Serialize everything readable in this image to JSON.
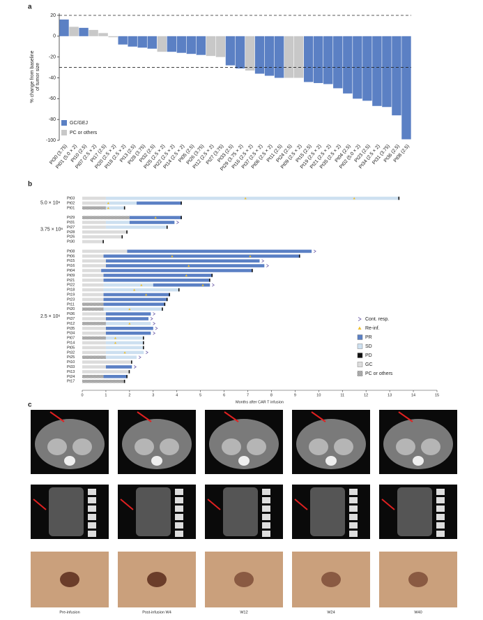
{
  "panel_labels": [
    "a",
    "b",
    "c"
  ],
  "chart_data": [
    {
      "type": "bar",
      "ylabel": [
        "% change from baseline",
        "of tumor size"
      ],
      "categories": [
        "Pt30 (3.75)",
        "Pt01 (5.0 × 2)",
        "Pt10 (2.5)",
        "Pt07 (2.5 × 2)",
        "Pt17 (2.5)",
        "Pt20 (2.5 × 2)",
        "Pt18 (2.5 × 2)",
        "Pt13 (2.5)",
        "Pt28 (3.75)",
        "Pt32 (2.5)",
        "Pt25 (2.5 × 2)",
        "Pt22 (2.5 × 2)",
        "Pt14 (2.5 × 2)",
        "Pt05 (2.5)",
        "Pt26 (3.75)",
        "Pt12 (2.5 × 2)",
        "Pt27 (3.75)",
        "Pt33 (2.5)",
        "Pt29 (3.75 × 2)",
        "Pt16 (2.5 × 2)",
        "Pt37 (2.5 × 2)",
        "Pt06 (2.5 × 2)",
        "Pt11 (2.5)",
        "Pt24 (2.5)",
        "Pt09 (2.5 × 2)",
        "Pt15 (2.5)",
        "Pt19 (2.5 × 2)",
        "Pt21 (2.5 × 2)",
        "Pt35 (2.5 × 2)",
        "Pt04 (2.5)",
        "Pt02 (5.0 × 2)",
        "Pt23 (2.5)",
        "Pt34 (2.5 × 2)",
        "Pt31 (3.75)",
        "Pt36 (2.5)",
        "Pt08 (2.5)"
      ],
      "series": [
        {
          "name": "GC/GEJ",
          "color": "#5b80c4",
          "values": [
            16,
            null,
            8,
            null,
            null,
            null,
            -8,
            -10,
            -11,
            -12,
            null,
            -15,
            -16,
            -17,
            -18,
            null,
            null,
            -28,
            -31,
            null,
            -36,
            -38,
            -40,
            null,
            null,
            -44,
            -45,
            -46,
            -50,
            -55,
            -60,
            -62,
            -67,
            -68,
            -76,
            -99
          ]
        },
        {
          "name": "PC or others",
          "color": "#c8c8c8",
          "values": [
            null,
            9,
            null,
            6,
            3,
            -1,
            null,
            null,
            null,
            null,
            -15,
            null,
            null,
            null,
            null,
            -19,
            -20,
            null,
            null,
            -33,
            null,
            null,
            null,
            -40,
            -40,
            null,
            null,
            null,
            null,
            null,
            null,
            null,
            null,
            null,
            null,
            null
          ]
        }
      ],
      "ylim": [
        -100,
        22
      ],
      "yticks": [
        20,
        0,
        -20,
        -40,
        -60,
        -80,
        -100
      ],
      "reference_lines": [
        20,
        -30
      ],
      "legend": "lower left"
    },
    {
      "type": "swimmer",
      "xlabel": "Months after CAR T infusion",
      "xlim": [
        0,
        15
      ],
      "xticks": [
        0,
        1,
        2,
        3,
        4,
        5,
        6,
        7,
        8,
        9,
        10,
        11,
        12,
        13,
        14,
        15
      ],
      "legend_items": [
        {
          "name": "Cont. resp.",
          "symbol": "chevron",
          "color": "#6b5ca8"
        },
        {
          "name": "Re-inf.",
          "symbol": "triangle",
          "color": "#f0c030"
        },
        {
          "name": "PR",
          "symbol": "box",
          "color": "#5b80c4"
        },
        {
          "name": "SD",
          "symbol": "box",
          "color": "#cde0f0"
        },
        {
          "name": "PD",
          "symbol": "box",
          "color": "#111111"
        },
        {
          "name": "GC",
          "symbol": "box",
          "color": "#dcdcdc"
        },
        {
          "name": "PC or others",
          "symbol": "hatch",
          "color": "#dcdcdc"
        }
      ],
      "groups": [
        {
          "label": "5.0 × 10⁶",
          "rows": [
            {
              "name": "Pt03",
              "segments": [
                {
                  "state": "GC",
                  "length": 1
                },
                {
                  "state": "SD",
                  "length": 12.4
                }
              ],
              "end": "PD",
              "reinfusions": [
                6.9,
                11.5
              ]
            },
            {
              "name": "Pt02",
              "segments": [
                {
                  "state": "GC",
                  "length": 1
                },
                {
                  "state": "SD",
                  "length": 1.3
                },
                {
                  "state": "PR",
                  "length": 1.9
                }
              ],
              "end": "PD",
              "reinfusions": [
                1.1
              ]
            },
            {
              "name": "Pt01",
              "segments": [
                {
                  "state": "PC or others",
                  "length": 1
                },
                {
                  "state": "SD",
                  "length": 0.8
                }
              ],
              "end": "PD",
              "reinfusions": [
                1.1
              ]
            }
          ]
        },
        {
          "label": "3.75 × 10⁶",
          "rows": [
            {
              "name": "Pt29",
              "segments": [
                {
                  "state": "PC or others",
                  "length": 2
                },
                {
                  "state": "PR",
                  "length": 2.2
                }
              ],
              "end": "PD",
              "reinfusions": [
                3.1
              ]
            },
            {
              "name": "Pt31",
              "segments": [
                {
                  "state": "GC",
                  "length": 1
                },
                {
                  "state": "SD",
                  "length": 1
                },
                {
                  "state": "PR",
                  "length": 1.9
                }
              ],
              "end": "Cont. resp.",
              "reinfusions": []
            },
            {
              "name": "Pt27",
              "segments": [
                {
                  "state": "GC",
                  "length": 1
                },
                {
                  "state": "SD",
                  "length": 2.6
                }
              ],
              "end": "PD",
              "reinfusions": []
            },
            {
              "name": "Pt28",
              "segments": [
                {
                  "state": "GC",
                  "length": 1.9
                }
              ],
              "end": "PD",
              "reinfusions": []
            },
            {
              "name": "Pt26",
              "segments": [
                {
                  "state": "GC",
                  "length": 1.7
                }
              ],
              "end": "PD",
              "reinfusions": []
            },
            {
              "name": "Pt30",
              "segments": [
                {
                  "state": "GC",
                  "length": 0.9
                }
              ],
              "end": "PD",
              "reinfusions": []
            }
          ]
        },
        {
          "label": "2.5 × 10⁶",
          "rows": [
            {
              "name": "Pt08",
              "segments": [
                {
                  "state": "GC",
                  "length": 1.9
                },
                {
                  "state": "PR",
                  "length": 7.8
                }
              ],
              "end": "Cont. resp.",
              "reinfusions": []
            },
            {
              "name": "Pt06",
              "segments": [
                {
                  "state": "GC",
                  "length": 0.9
                },
                {
                  "state": "PR",
                  "length": 8.3
                }
              ],
              "end": "PD",
              "reinfusions": [
                3.8,
                7.1
              ]
            },
            {
              "name": "Pt15",
              "segments": [
                {
                  "state": "GC",
                  "length": 1
                },
                {
                  "state": "PR",
                  "length": 6.5
                }
              ],
              "end": "Cont. resp.",
              "reinfusions": []
            },
            {
              "name": "Pt16",
              "segments": [
                {
                  "state": "GC",
                  "length": 1
                },
                {
                  "state": "PR",
                  "length": 6.7
                }
              ],
              "end": "Cont. resp.",
              "reinfusions": [
                4.5
              ]
            },
            {
              "name": "Pt04",
              "segments": [
                {
                  "state": "GC",
                  "length": 0.8
                },
                {
                  "state": "PR",
                  "length": 6.4
                }
              ],
              "end": "PD",
              "reinfusions": []
            },
            {
              "name": "Pt09",
              "segments": [
                {
                  "state": "GC",
                  "length": 0.9
                },
                {
                  "state": "PR",
                  "length": 4.6
                }
              ],
              "end": "PD",
              "reinfusions": [
                4.4
              ]
            },
            {
              "name": "Pt21",
              "segments": [
                {
                  "state": "GC",
                  "length": 0.9
                },
                {
                  "state": "PR",
                  "length": 4.5
                }
              ],
              "end": "PD",
              "reinfusions": []
            },
            {
              "name": "Pt22",
              "segments": [
                {
                  "state": "GC",
                  "length": 0.9
                },
                {
                  "state": "SD",
                  "length": 2.1
                },
                {
                  "state": "PR",
                  "length": 2.4
                }
              ],
              "end": "Cont. resp.",
              "reinfusions": [
                2.5,
                5.1
              ]
            },
            {
              "name": "Pt18",
              "segments": [
                {
                  "state": "GC",
                  "length": 0.9
                },
                {
                  "state": "SD",
                  "length": 3.2
                }
              ],
              "end": "PD",
              "reinfusions": [
                2.2
              ]
            },
            {
              "name": "Pt19",
              "segments": [
                {
                  "state": "GC",
                  "length": 0.9
                },
                {
                  "state": "PR",
                  "length": 2.8
                }
              ],
              "end": "PD",
              "reinfusions": [
                2.7
              ]
            },
            {
              "name": "Pt23",
              "segments": [
                {
                  "state": "GC",
                  "length": 0.9
                },
                {
                  "state": "PR",
                  "length": 2.7
                }
              ],
              "end": "PD",
              "reinfusions": []
            },
            {
              "name": "Pt11",
              "segments": [
                {
                  "state": "PC or others",
                  "length": 0.9
                },
                {
                  "state": "PR",
                  "length": 2.6
                }
              ],
              "end": "PD",
              "reinfusions": []
            },
            {
              "name": "Pt20",
              "segments": [
                {
                  "state": "PC or others",
                  "length": 0.9
                },
                {
                  "state": "SD",
                  "length": 2.5
                }
              ],
              "end": "PD",
              "reinfusions": [
                2
              ]
            },
            {
              "name": "Pt36",
              "segments": [
                {
                  "state": "GC",
                  "length": 1
                },
                {
                  "state": "PR",
                  "length": 1.9
                }
              ],
              "end": "Cont. resp.",
              "reinfusions": []
            },
            {
              "name": "Pt37",
              "segments": [
                {
                  "state": "GC",
                  "length": 1
                },
                {
                  "state": "PR",
                  "length": 1.8
                }
              ],
              "end": "Cont. resp.",
              "reinfusions": []
            },
            {
              "name": "Pt12",
              "segments": [
                {
                  "state": "PC or others",
                  "length": 1
                },
                {
                  "state": "SD",
                  "length": 1.9
                }
              ],
              "end": "Cont. resp.",
              "reinfusions": [
                2
              ]
            },
            {
              "name": "Pt35",
              "segments": [
                {
                  "state": "GC",
                  "length": 1
                },
                {
                  "state": "PR",
                  "length": 2
                }
              ],
              "end": "Cont. resp.",
              "reinfusions": []
            },
            {
              "name": "Pt34",
              "segments": [
                {
                  "state": "GC",
                  "length": 1
                },
                {
                  "state": "PR",
                  "length": 1.9
                }
              ],
              "end": "Cont. resp.",
              "reinfusions": []
            },
            {
              "name": "Pt07",
              "segments": [
                {
                  "state": "PC or others",
                  "length": 1
                },
                {
                  "state": "SD",
                  "length": 1.6
                }
              ],
              "end": "PD",
              "reinfusions": [
                1.4
              ]
            },
            {
              "name": "Pt14",
              "segments": [
                {
                  "state": "GC",
                  "length": 1
                },
                {
                  "state": "SD",
                  "length": 1.6
                }
              ],
              "end": "PD",
              "reinfusions": [
                1.4
              ]
            },
            {
              "name": "Pt05",
              "segments": [
                {
                  "state": "GC",
                  "length": 1
                },
                {
                  "state": "SD",
                  "length": 1.6
                }
              ],
              "end": "PD",
              "reinfusions": []
            },
            {
              "name": "Pt32",
              "segments": [
                {
                  "state": "GC",
                  "length": 1
                },
                {
                  "state": "SD",
                  "length": 1.6
                }
              ],
              "end": "Cont. resp.",
              "reinfusions": [
                1.8
              ]
            },
            {
              "name": "Pt25",
              "segments": [
                {
                  "state": "PC or others",
                  "length": 1
                },
                {
                  "state": "SD",
                  "length": 1.3
                }
              ],
              "end": "Cont. resp.",
              "reinfusions": []
            },
            {
              "name": "Pt10",
              "segments": [
                {
                  "state": "GC",
                  "length": 2.1
                }
              ],
              "end": "PD",
              "reinfusions": []
            },
            {
              "name": "Pt33",
              "segments": [
                {
                  "state": "GC",
                  "length": 1
                },
                {
                  "state": "PR",
                  "length": 1.1
                }
              ],
              "end": "Cont. resp.",
              "reinfusions": []
            },
            {
              "name": "Pt13",
              "segments": [
                {
                  "state": "GC",
                  "length": 2
                }
              ],
              "end": "PD",
              "reinfusions": []
            },
            {
              "name": "Pt24",
              "segments": [
                {
                  "state": "PC or others",
                  "length": 0.9
                },
                {
                  "state": "PR",
                  "length": 1
                }
              ],
              "end": "PD",
              "reinfusions": []
            },
            {
              "name": "Pt17",
              "segments": [
                {
                  "state": "PC or others",
                  "length": 1.8
                }
              ],
              "end": "PD",
              "reinfusions": []
            }
          ]
        }
      ]
    }
  ],
  "panel_c": {
    "captions": [
      "Pre-infusion",
      "Post-infusion W4",
      "W12",
      "W24",
      "W40"
    ]
  }
}
